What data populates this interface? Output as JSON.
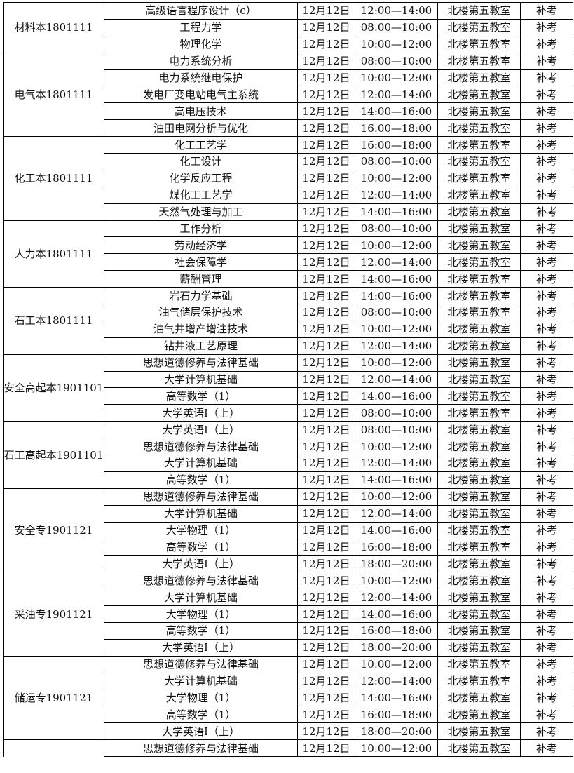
{
  "groups": [
    {
      "class": "材料本1801111",
      "rows": [
        [
          "高级语言程序设计（c）",
          "12月12日",
          "12:00—14:00",
          "北楼第五教室",
          "补考"
        ],
        [
          "工程力学",
          "12月12日",
          "08:00—10:00",
          "北楼第五教室",
          "补考"
        ],
        [
          "物理化学",
          "12月12日",
          "10:00—12:00",
          "北楼第五教室",
          "补考"
        ]
      ]
    },
    {
      "class": "电气本1801111",
      "rows": [
        [
          "电力系统分析",
          "12月12日",
          "08:00—10:00",
          "北楼第五教室",
          "补考"
        ],
        [
          "电力系统继电保护",
          "12月12日",
          "10:00—12:00",
          "北楼第五教室",
          "补考"
        ],
        [
          "发电厂变电站电气主系统",
          "12月12日",
          "12:00—14:00",
          "北楼第五教室",
          "补考"
        ],
        [
          "高电压技术",
          "12月12日",
          "14:00—16:00",
          "北楼第五教室",
          "补考"
        ],
        [
          "油田电网分析与优化",
          "12月12日",
          "16:00—18:00",
          "北楼第五教室",
          "补考"
        ]
      ]
    },
    {
      "class": "化工本1801111",
      "rows": [
        [
          "化工工艺学",
          "12月12日",
          "16:00—18:00",
          "北楼第五教室",
          "补考"
        ],
        [
          "化工设计",
          "12月12日",
          "08:00—10:00",
          "北楼第五教室",
          "补考"
        ],
        [
          "化学反应工程",
          "12月12日",
          "10:00—12:00",
          "北楼第五教室",
          "补考"
        ],
        [
          "煤化工工艺学",
          "12月12日",
          "12:00—14:00",
          "北楼第五教室",
          "补考"
        ],
        [
          "天然气处理与加工",
          "12月12日",
          "14:00—16:00",
          "北楼第五教室",
          "补考"
        ]
      ]
    },
    {
      "class": "人力本1801111",
      "rows": [
        [
          "工作分析",
          "12月12日",
          "08:00—10:00",
          "北楼第五教室",
          "补考"
        ],
        [
          "劳动经济学",
          "12月12日",
          "10:00—12:00",
          "北楼第五教室",
          "补考"
        ],
        [
          "社会保障学",
          "12月12日",
          "12:00—14:00",
          "北楼第五教室",
          "补考"
        ],
        [
          "薪酬管理",
          "12月12日",
          "14:00—16:00",
          "北楼第五教室",
          "补考"
        ]
      ]
    },
    {
      "class": "石工本1801111",
      "rows": [
        [
          "岩石力学基础",
          "12月12日",
          "14:00—16:00",
          "北楼第五教室",
          "补考"
        ],
        [
          "油气储层保护技术",
          "12月12日",
          "08:00—10:00",
          "北楼第五教室",
          "补考"
        ],
        [
          "油气井增产增注技术",
          "12月12日",
          "10:00—12:00",
          "北楼第五教室",
          "补考"
        ],
        [
          "钻井液工艺原理",
          "12月12日",
          "12:00—14:00",
          "北楼第五教室",
          "补考"
        ]
      ]
    },
    {
      "class": "安全高起本1901101",
      "rows": [
        [
          "思想道德修养与法律基础",
          "12月12日",
          "10:00—12:00",
          "北楼第五教室",
          "补考"
        ],
        [
          "大学计算机基础",
          "12月12日",
          "12:00—14:00",
          "北楼第五教室",
          "补考"
        ],
        [
          "高等数学（1）",
          "12月12日",
          "14:00—16:00",
          "北楼第五教室",
          "补考"
        ],
        [
          "大学英语I（上）",
          "12月12日",
          "08:00—10:00",
          "北楼第五教室",
          "补考"
        ]
      ]
    },
    {
      "class": "石工高起本1901101",
      "rows": [
        [
          "大学英语I（上）",
          "12月12日",
          "08:00—10:00",
          "北楼第五教室",
          "补考"
        ],
        [
          "思想道德修养与法律基础",
          "12月12日",
          "10:00—12:00",
          "北楼第五教室",
          "补考"
        ],
        [
          "大学计算机基础",
          "12月12日",
          "12:00—14:00",
          "北楼第五教室",
          "补考"
        ],
        [
          "高等数学（1）",
          "12月12日",
          "14:00—16:00",
          "北楼第五教室",
          "补考"
        ]
      ]
    },
    {
      "class": "安全专1901121",
      "rows": [
        [
          "思想道德修养与法律基础",
          "12月12日",
          "10:00—12:00",
          "北楼第五教室",
          "补考"
        ],
        [
          "大学计算机基础",
          "12月12日",
          "12:00—14:00",
          "北楼第五教室",
          "补考"
        ],
        [
          "大学物理（1）",
          "12月12日",
          "14:00—16:00",
          "北楼第五教室",
          "补考"
        ],
        [
          "高等数学（1）",
          "12月12日",
          "16:00—18:00",
          "北楼第五教室",
          "补考"
        ],
        [
          "大学英语I（上）",
          "12月12日",
          "18:00—20:00",
          "北楼第五教室",
          "补考"
        ]
      ]
    },
    {
      "class": "采油专1901121",
      "rows": [
        [
          "思想道德修养与法律基础",
          "12月12日",
          "10:00—12:00",
          "北楼第五教室",
          "补考"
        ],
        [
          "大学计算机基础",
          "12月12日",
          "12:00—14:00",
          "北楼第五教室",
          "补考"
        ],
        [
          "大学物理（1）",
          "12月12日",
          "14:00—16:00",
          "北楼第五教室",
          "补考"
        ],
        [
          "高等数学（1）",
          "12月12日",
          "16:00—18:00",
          "北楼第五教室",
          "补考"
        ],
        [
          "大学英语I（上）",
          "12月12日",
          "18:00—20:00",
          "北楼第五教室",
          "补考"
        ]
      ]
    },
    {
      "class": "储运专1901121",
      "rows": [
        [
          "思想道德修养与法律基础",
          "12月12日",
          "10:00—12:00",
          "北楼第五教室",
          "补考"
        ],
        [
          "大学计算机基础",
          "12月12日",
          "12:00—14:00",
          "北楼第五教室",
          "补考"
        ],
        [
          "大学物理（1）",
          "12月12日",
          "14:00—16:00",
          "北楼第五教室",
          "补考"
        ],
        [
          "高等数学（1）",
          "12月12日",
          "16:00—18:00",
          "北楼第五教室",
          "补考"
        ],
        [
          "大学英语I（上）",
          "12月12日",
          "18:00—20:00",
          "北楼第五教室",
          "补考"
        ]
      ]
    },
    {
      "class": "",
      "rows": [
        [
          "思想道德修养与法律基础",
          "12月12日",
          "10:00—12:00",
          "北楼第五教室",
          "补考"
        ]
      ]
    }
  ]
}
